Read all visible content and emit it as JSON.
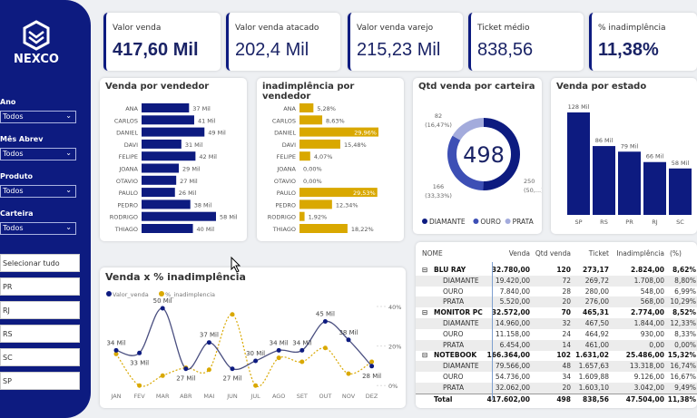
{
  "brand": {
    "name": "NEXCO"
  },
  "colors": {
    "navy": "#0d1b80",
    "gold": "#d9a800",
    "ouro": "#3d4fb5",
    "prata": "#a3abdc"
  },
  "filters": [
    {
      "label": "Ano",
      "value": "Todos"
    },
    {
      "label": "Mês Abrev",
      "value": "Todos"
    },
    {
      "label": "Produto",
      "value": "Todos"
    },
    {
      "label": "Carteira",
      "value": "Todos"
    }
  ],
  "state_slicer": [
    "Selecionar tudo",
    "PR",
    "RJ",
    "RS",
    "SC",
    "SP"
  ],
  "kpis": [
    {
      "title": "Valor venda",
      "value": "417,60 Mil"
    },
    {
      "title": "Valor venda atacado",
      "value": "202,4 Mil"
    },
    {
      "title": "Valor venda varejo",
      "value": "215,23 Mil"
    },
    {
      "title": "Ticket médio",
      "value": "838,56"
    },
    {
      "title": "% inadimplência",
      "value": "11,38%"
    }
  ],
  "chart_data": [
    {
      "type": "bar",
      "orientation": "horizontal",
      "title": "Venda por vendedor",
      "categories": [
        "ANA",
        "CARLOS",
        "DANIEL",
        "DAVI",
        "FELIPE",
        "JOANA",
        "OTAVIO",
        "PAULO",
        "PEDRO",
        "RODRIGO",
        "THIAGO"
      ],
      "values": [
        37,
        41,
        49,
        31,
        42,
        29,
        27,
        26,
        38,
        58,
        40
      ],
      "labels": [
        "37 Mil",
        "41 Mil",
        "49 Mil",
        "31 Mil",
        "42 Mil",
        "29 Mil",
        "27 Mil",
        "26 Mil",
        "38 Mil",
        "58 Mil",
        "40 Mil"
      ]
    },
    {
      "type": "bar",
      "orientation": "horizontal",
      "title": "inadimplência por vendedor",
      "categories": [
        "ANA",
        "CARLOS",
        "DANIEL",
        "DAVI",
        "FELIPE",
        "JOANA",
        "OTAVIO",
        "PAULO",
        "PEDRO",
        "RODRIGO",
        "THIAGO"
      ],
      "values": [
        5.28,
        8.63,
        29.96,
        15.48,
        4.07,
        0,
        0,
        29.53,
        12.34,
        1.92,
        18.22
      ],
      "labels": [
        "5,28%",
        "8,63%",
        "29,96%",
        "15,48%",
        "4,07%",
        "0,00%",
        "0,00%",
        "29,53%",
        "12,34%",
        "1,92%",
        "18,22%"
      ]
    },
    {
      "type": "pie",
      "variant": "donut",
      "title": "Qtd venda por carteira",
      "center_label": "498",
      "categories": [
        "DIAMANTE",
        "OURO",
        "PRATA"
      ],
      "values": [
        250,
        166,
        82
      ],
      "labels": [
        "250\n(50,...)",
        "166\n(33,33%)",
        "82\n(16,47%)"
      ]
    },
    {
      "type": "bar",
      "title": "Venda por estado",
      "categories": [
        "SP",
        "RS",
        "PR",
        "RJ",
        "SC"
      ],
      "values": [
        128,
        86,
        79,
        66,
        58
      ],
      "labels": [
        "128 Mil",
        "86 Mil",
        "79 Mil",
        "66 Mil",
        "58 Mil"
      ]
    },
    {
      "type": "line",
      "title": "Venda x % inadimplência",
      "categories": [
        "JAN",
        "FEV",
        "MAR",
        "ABR",
        "MAI",
        "JUN",
        "JUL",
        "AGO",
        "SET",
        "OUT",
        "NOV",
        "DEZ"
      ],
      "series": [
        {
          "name": "Valor_venda",
          "values": [
            34,
            33,
            50,
            27,
            37,
            27,
            30,
            34,
            34,
            45,
            38,
            28
          ],
          "labels": [
            "34 Mil",
            "33 Mil",
            "50 Mil",
            "27 Mil",
            "37 Mil",
            "27 Mil",
            "30 Mil",
            "34 Mil",
            "34 Mil",
            "45 Mil",
            "38 Mil",
            "28 Mil"
          ]
        },
        {
          "name": "%_inadimplencia",
          "values": [
            16,
            0,
            5,
            9,
            8,
            36,
            0,
            14,
            12,
            19,
            6,
            12
          ]
        }
      ],
      "y2_ticks": [
        "40%",
        "20%",
        "0%"
      ],
      "y2lim": [
        0,
        40
      ],
      "legend": "top-left"
    }
  ],
  "table": {
    "headers": [
      "NOME",
      "Venda",
      "Qtd venda",
      "Ticket",
      "Inadimplência",
      "(%)"
    ],
    "rows": [
      {
        "g": true,
        "c": [
          "BLU RAY",
          "32.780,00",
          "120",
          "273,17",
          "2.824,00",
          "8,62%"
        ]
      },
      {
        "c": [
          "DIAMANTE",
          "19.420,00",
          "72",
          "269,72",
          "1.708,00",
          "8,80%"
        ]
      },
      {
        "c": [
          "OURO",
          "7.840,00",
          "28",
          "280,00",
          "548,00",
          "6,99%"
        ]
      },
      {
        "c": [
          "PRATA",
          "5.520,00",
          "20",
          "276,00",
          "568,00",
          "10,29%"
        ]
      },
      {
        "g": true,
        "c": [
          "MONITOR PC",
          "32.572,00",
          "70",
          "465,31",
          "2.774,00",
          "8,52%"
        ]
      },
      {
        "c": [
          "DIAMANTE",
          "14.960,00",
          "32",
          "467,50",
          "1.844,00",
          "12,33%"
        ]
      },
      {
        "c": [
          "OURO",
          "11.158,00",
          "24",
          "464,92",
          "930,00",
          "8,33%"
        ]
      },
      {
        "c": [
          "PRATA",
          "6.454,00",
          "14",
          "461,00",
          "0,00",
          "0,00%"
        ]
      },
      {
        "g": true,
        "c": [
          "NOTEBOOK",
          "166.364,00",
          "102",
          "1.631,02",
          "25.486,00",
          "15,32%"
        ]
      },
      {
        "c": [
          "DIAMANTE",
          "79.566,00",
          "48",
          "1.657,63",
          "13.318,00",
          "16,74%"
        ]
      },
      {
        "c": [
          "OURO",
          "54.736,00",
          "34",
          "1.609,88",
          "9.126,00",
          "16,67%"
        ]
      },
      {
        "c": [
          "PRATA",
          "32.062,00",
          "20",
          "1.603,10",
          "3.042,00",
          "9,49%"
        ]
      }
    ],
    "total": [
      "Total",
      "417.602,00",
      "498",
      "838,56",
      "47.504,00",
      "11,38%"
    ]
  }
}
